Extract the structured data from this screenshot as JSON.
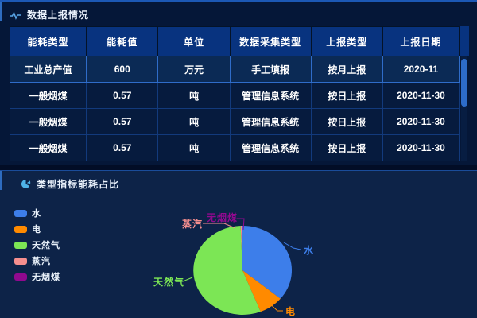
{
  "report_panel": {
    "title": "数据上报情况",
    "table": {
      "headers": [
        "能耗类型",
        "能耗值",
        "单位",
        "数据采集类型",
        "上报类型",
        "上报日期"
      ],
      "rows": [
        [
          "工业总产值",
          "600",
          "万元",
          "手工填报",
          "按月上报",
          "2020-11"
        ],
        [
          "一般烟煤",
          "0.57",
          "吨",
          "管理信息系统",
          "按日上报",
          "2020-11-30"
        ],
        [
          "一般烟煤",
          "0.57",
          "吨",
          "管理信息系统",
          "按日上报",
          "2020-11-30"
        ],
        [
          "一般烟煤",
          "0.57",
          "吨",
          "管理信息系统",
          "按日上报",
          "2020-11-30"
        ]
      ],
      "highlighted_row": 0
    }
  },
  "chart_panel": {
    "title": "类型指标能耗占比"
  },
  "chart_data": {
    "type": "pie",
    "title": "类型指标能耗占比",
    "legend_position": "left",
    "values_are": "estimated_percent_share",
    "series": [
      {
        "name": "水",
        "value": 36,
        "color": "#3D7EEA"
      },
      {
        "name": "电",
        "value": 8,
        "color": "#FF8A00"
      },
      {
        "name": "天然气",
        "value": 55.4,
        "color": "#7CE655"
      },
      {
        "name": "蒸汽",
        "value": 0.4,
        "color": "#F58E8E"
      },
      {
        "name": "无烟煤",
        "value": 0.2,
        "color": "#91098F"
      }
    ]
  },
  "colors": {
    "page_bg": "#020d26",
    "panel_top_bg": "#051738",
    "panel_bottom_bg": "#0d2348",
    "panel_accent": "#1c58b5",
    "table_header_bg": "#08337f",
    "table_row_bg": "#061b3e",
    "table_row_highlight_bg": "#0b2a55",
    "table_border": "#123a7c",
    "table_border_highlight": "#2f6cc9",
    "scrollbar_thumb": "#2d6cc9",
    "title_text": "#eaf2fc"
  }
}
